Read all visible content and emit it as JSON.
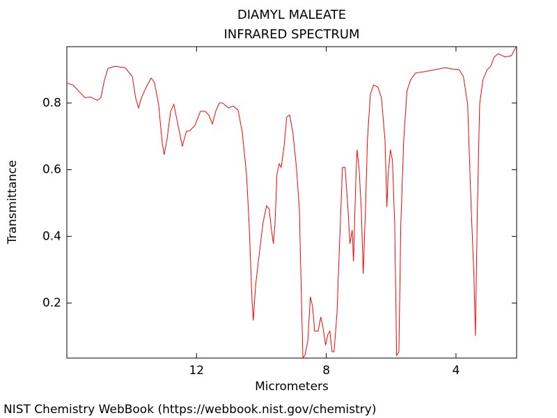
{
  "chart_data": {
    "type": "line",
    "title": "DIAMYL MALEATE",
    "subtitle": "INFRARED SPECTRUM",
    "x_label": "Micrometers",
    "y_label": "Transmittance",
    "source": "NIST Chemistry WebBook (https://webbook.nist.gov/chemistry)",
    "color": "#ff0000",
    "xlim": [
      16,
      2.13
    ],
    "ylim": [
      0.035,
      0.969
    ],
    "xticks": [
      12,
      8,
      4
    ],
    "yticks": [
      0.2,
      0.4,
      0.6,
      0.8
    ],
    "x": [
      16.0,
      15.81,
      15.59,
      15.44,
      15.27,
      15.06,
      14.95,
      14.84,
      14.73,
      14.52,
      14.2,
      13.98,
      13.88,
      13.79,
      13.7,
      13.55,
      13.4,
      13.3,
      13.17,
      13.06,
      13.0,
      12.91,
      12.8,
      12.7,
      12.59,
      12.44,
      12.31,
      12.22,
      12.05,
      11.88,
      11.73,
      11.62,
      11.51,
      11.41,
      11.3,
      11.19,
      11.02,
      10.87,
      10.72,
      10.59,
      10.46,
      10.38,
      10.29,
      10.25,
      10.18,
      10.08,
      9.95,
      9.84,
      9.76,
      9.69,
      9.63,
      9.58,
      9.52,
      9.45,
      9.39,
      9.3,
      9.22,
      9.13,
      9.03,
      8.92,
      8.83,
      8.77,
      8.72,
      8.66,
      8.57,
      8.49,
      8.42,
      8.36,
      8.25,
      8.17,
      8.1,
      8.02,
      7.95,
      7.89,
      7.82,
      7.76,
      7.67,
      7.59,
      7.5,
      7.42,
      7.33,
      7.27,
      7.2,
      7.16,
      7.09,
      7.05,
      6.99,
      6.92,
      6.86,
      6.79,
      6.73,
      6.64,
      6.54,
      6.41,
      6.3,
      6.19,
      6.13,
      6.09,
      6.02,
      5.96,
      5.89,
      5.83,
      5.76,
      5.7,
      5.61,
      5.51,
      5.4,
      5.25,
      4.97,
      4.65,
      4.33,
      4.11,
      3.9,
      3.77,
      3.64,
      3.53,
      3.45,
      3.4,
      3.34,
      3.27,
      3.17,
      3.04,
      2.93,
      2.82,
      2.7,
      2.48,
      2.29,
      2.14
    ],
    "values": [
      0.86,
      0.854,
      0.831,
      0.816,
      0.818,
      0.808,
      0.816,
      0.869,
      0.904,
      0.91,
      0.906,
      0.879,
      0.816,
      0.785,
      0.816,
      0.848,
      0.875,
      0.862,
      0.796,
      0.681,
      0.645,
      0.691,
      0.775,
      0.796,
      0.743,
      0.67,
      0.716,
      0.716,
      0.733,
      0.775,
      0.775,
      0.764,
      0.737,
      0.775,
      0.8,
      0.8,
      0.785,
      0.791,
      0.779,
      0.712,
      0.587,
      0.44,
      0.21,
      0.148,
      0.252,
      0.336,
      0.44,
      0.492,
      0.482,
      0.419,
      0.378,
      0.44,
      0.587,
      0.618,
      0.607,
      0.67,
      0.758,
      0.764,
      0.712,
      0.607,
      0.482,
      0.231,
      0.035,
      0.043,
      0.085,
      0.219,
      0.189,
      0.116,
      0.116,
      0.158,
      0.127,
      0.074,
      0.106,
      0.116,
      0.054,
      0.054,
      0.169,
      0.378,
      0.607,
      0.607,
      0.482,
      0.378,
      0.419,
      0.325,
      0.566,
      0.66,
      0.607,
      0.482,
      0.288,
      0.482,
      0.691,
      0.827,
      0.854,
      0.848,
      0.816,
      0.691,
      0.488,
      0.587,
      0.66,
      0.628,
      0.44,
      0.043,
      0.054,
      0.44,
      0.691,
      0.837,
      0.869,
      0.89,
      0.894,
      0.9,
      0.906,
      0.902,
      0.9,
      0.879,
      0.796,
      0.482,
      0.294,
      0.102,
      0.482,
      0.796,
      0.869,
      0.9,
      0.91,
      0.938,
      0.948,
      0.938,
      0.942,
      0.969
    ]
  }
}
